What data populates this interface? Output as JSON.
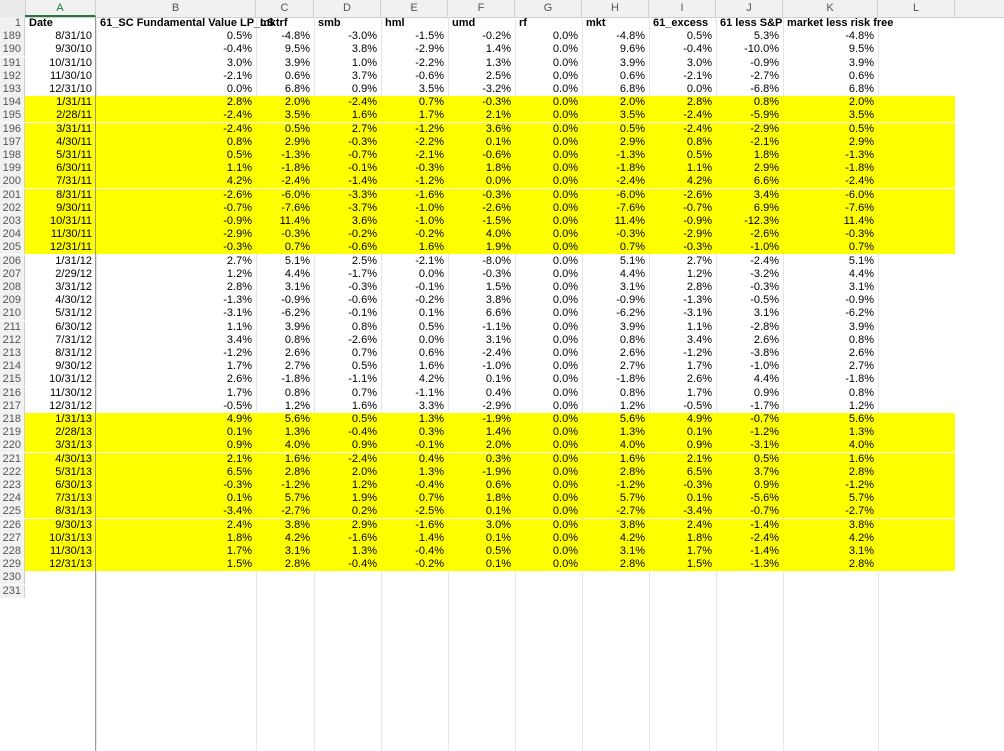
{
  "columns": [
    "A",
    "B",
    "C",
    "D",
    "E",
    "F",
    "G",
    "H",
    "I",
    "J",
    "K",
    "L"
  ],
  "header_row_num": "1",
  "headers": [
    "Date",
    "61_SC Fundamental Value LP_LS",
    "mktrf",
    "smb",
    "hml",
    "umd",
    "rf",
    "mkt",
    "61_excess",
    "61 less S&P",
    "market less risk free",
    ""
  ],
  "rows": [
    {
      "n": "189",
      "hl": false,
      "v": [
        "8/31/10",
        "0.5%",
        "-4.8%",
        "-3.0%",
        "-1.5%",
        "-0.2%",
        "0.0%",
        "-4.8%",
        "0.5%",
        "5.3%",
        "-4.8%"
      ]
    },
    {
      "n": "190",
      "hl": false,
      "v": [
        "9/30/10",
        "-0.4%",
        "9.5%",
        "3.8%",
        "-2.9%",
        "1.4%",
        "0.0%",
        "9.6%",
        "-0.4%",
        "-10.0%",
        "9.5%"
      ]
    },
    {
      "n": "191",
      "hl": false,
      "v": [
        "10/31/10",
        "3.0%",
        "3.9%",
        "1.0%",
        "-2.2%",
        "1.3%",
        "0.0%",
        "3.9%",
        "3.0%",
        "-0.9%",
        "3.9%"
      ]
    },
    {
      "n": "192",
      "hl": false,
      "v": [
        "11/30/10",
        "-2.1%",
        "0.6%",
        "3.7%",
        "-0.6%",
        "2.5%",
        "0.0%",
        "0.6%",
        "-2.1%",
        "-2.7%",
        "0.6%"
      ]
    },
    {
      "n": "193",
      "hl": false,
      "v": [
        "12/31/10",
        "0.0%",
        "6.8%",
        "0.9%",
        "3.5%",
        "-3.2%",
        "0.0%",
        "6.8%",
        "0.0%",
        "-6.8%",
        "6.8%"
      ]
    },
    {
      "n": "194",
      "hl": true,
      "v": [
        "1/31/11",
        "2.8%",
        "2.0%",
        "-2.4%",
        "0.7%",
        "-0.3%",
        "0.0%",
        "2.0%",
        "2.8%",
        "0.8%",
        "2.0%"
      ]
    },
    {
      "n": "195",
      "hl": true,
      "v": [
        "2/28/11",
        "-2.4%",
        "3.5%",
        "1.6%",
        "1.7%",
        "2.1%",
        "0.0%",
        "3.5%",
        "-2.4%",
        "-5.9%",
        "3.5%"
      ]
    },
    {
      "n": "196",
      "hl": true,
      "v": [
        "3/31/11",
        "-2.4%",
        "0.5%",
        "2.7%",
        "-1.2%",
        "3.6%",
        "0.0%",
        "0.5%",
        "-2.4%",
        "-2.9%",
        "0.5%"
      ]
    },
    {
      "n": "197",
      "hl": true,
      "v": [
        "4/30/11",
        "0.8%",
        "2.9%",
        "-0.3%",
        "-2.2%",
        "0.1%",
        "0.0%",
        "2.9%",
        "0.8%",
        "-2.1%",
        "2.9%"
      ]
    },
    {
      "n": "198",
      "hl": true,
      "v": [
        "5/31/11",
        "0.5%",
        "-1.3%",
        "-0.7%",
        "-2.1%",
        "-0.6%",
        "0.0%",
        "-1.3%",
        "0.5%",
        "1.8%",
        "-1.3%"
      ]
    },
    {
      "n": "199",
      "hl": true,
      "v": [
        "6/30/11",
        "1.1%",
        "-1.8%",
        "-0.1%",
        "-0.3%",
        "1.8%",
        "0.0%",
        "-1.8%",
        "1.1%",
        "2.9%",
        "-1.8%"
      ]
    },
    {
      "n": "200",
      "hl": true,
      "v": [
        "7/31/11",
        "4.2%",
        "-2.4%",
        "-1.4%",
        "-1.2%",
        "0.0%",
        "0.0%",
        "-2.4%",
        "4.2%",
        "6.6%",
        "-2.4%"
      ]
    },
    {
      "n": "201",
      "hl": true,
      "v": [
        "8/31/11",
        "-2.6%",
        "-6.0%",
        "-3.3%",
        "-1.6%",
        "-0.3%",
        "0.0%",
        "-6.0%",
        "-2.6%",
        "3.4%",
        "-6.0%"
      ]
    },
    {
      "n": "202",
      "hl": true,
      "v": [
        "9/30/11",
        "-0.7%",
        "-7.6%",
        "-3.7%",
        "-1.0%",
        "-2.6%",
        "0.0%",
        "-7.6%",
        "-0.7%",
        "6.9%",
        "-7.6%"
      ]
    },
    {
      "n": "203",
      "hl": true,
      "v": [
        "10/31/11",
        "-0.9%",
        "11.4%",
        "3.6%",
        "-1.0%",
        "-1.5%",
        "0.0%",
        "11.4%",
        "-0.9%",
        "-12.3%",
        "11.4%"
      ]
    },
    {
      "n": "204",
      "hl": true,
      "v": [
        "11/30/11",
        "-2.9%",
        "-0.3%",
        "-0.2%",
        "-0.2%",
        "4.0%",
        "0.0%",
        "-0.3%",
        "-2.9%",
        "-2.6%",
        "-0.3%"
      ]
    },
    {
      "n": "205",
      "hl": true,
      "v": [
        "12/31/11",
        "-0.3%",
        "0.7%",
        "-0.6%",
        "1.6%",
        "1.9%",
        "0.0%",
        "0.7%",
        "-0.3%",
        "-1.0%",
        "0.7%"
      ]
    },
    {
      "n": "206",
      "hl": false,
      "v": [
        "1/31/12",
        "2.7%",
        "5.1%",
        "2.5%",
        "-2.1%",
        "-8.0%",
        "0.0%",
        "5.1%",
        "2.7%",
        "-2.4%",
        "5.1%"
      ]
    },
    {
      "n": "207",
      "hl": false,
      "v": [
        "2/29/12",
        "1.2%",
        "4.4%",
        "-1.7%",
        "0.0%",
        "-0.3%",
        "0.0%",
        "4.4%",
        "1.2%",
        "-3.2%",
        "4.4%"
      ]
    },
    {
      "n": "208",
      "hl": false,
      "v": [
        "3/31/12",
        "2.8%",
        "3.1%",
        "-0.3%",
        "-0.1%",
        "1.5%",
        "0.0%",
        "3.1%",
        "2.8%",
        "-0.3%",
        "3.1%"
      ]
    },
    {
      "n": "209",
      "hl": false,
      "v": [
        "4/30/12",
        "-1.3%",
        "-0.9%",
        "-0.6%",
        "-0.2%",
        "3.8%",
        "0.0%",
        "-0.9%",
        "-1.3%",
        "-0.5%",
        "-0.9%"
      ]
    },
    {
      "n": "210",
      "hl": false,
      "v": [
        "5/31/12",
        "-3.1%",
        "-6.2%",
        "-0.1%",
        "0.1%",
        "6.6%",
        "0.0%",
        "-6.2%",
        "-3.1%",
        "3.1%",
        "-6.2%"
      ]
    },
    {
      "n": "211",
      "hl": false,
      "v": [
        "6/30/12",
        "1.1%",
        "3.9%",
        "0.8%",
        "0.5%",
        "-1.1%",
        "0.0%",
        "3.9%",
        "1.1%",
        "-2.8%",
        "3.9%"
      ]
    },
    {
      "n": "212",
      "hl": false,
      "v": [
        "7/31/12",
        "3.4%",
        "0.8%",
        "-2.6%",
        "0.0%",
        "3.1%",
        "0.0%",
        "0.8%",
        "3.4%",
        "2.6%",
        "0.8%"
      ]
    },
    {
      "n": "213",
      "hl": false,
      "v": [
        "8/31/12",
        "-1.2%",
        "2.6%",
        "0.7%",
        "0.6%",
        "-2.4%",
        "0.0%",
        "2.6%",
        "-1.2%",
        "-3.8%",
        "2.6%"
      ]
    },
    {
      "n": "214",
      "hl": false,
      "v": [
        "9/30/12",
        "1.7%",
        "2.7%",
        "0.5%",
        "1.6%",
        "-1.0%",
        "0.0%",
        "2.7%",
        "1.7%",
        "-1.0%",
        "2.7%"
      ]
    },
    {
      "n": "215",
      "hl": false,
      "v": [
        "10/31/12",
        "2.6%",
        "-1.8%",
        "-1.1%",
        "4.2%",
        "0.1%",
        "0.0%",
        "-1.8%",
        "2.6%",
        "4.4%",
        "-1.8%"
      ]
    },
    {
      "n": "216",
      "hl": false,
      "v": [
        "11/30/12",
        "1.7%",
        "0.8%",
        "0.7%",
        "-1.1%",
        "0.4%",
        "0.0%",
        "0.8%",
        "1.7%",
        "0.9%",
        "0.8%"
      ]
    },
    {
      "n": "217",
      "hl": false,
      "v": [
        "12/31/12",
        "-0.5%",
        "1.2%",
        "1.6%",
        "3.3%",
        "-2.9%",
        "0.0%",
        "1.2%",
        "-0.5%",
        "-1.7%",
        "1.2%"
      ]
    },
    {
      "n": "218",
      "hl": true,
      "v": [
        "1/31/13",
        "4.9%",
        "5.6%",
        "0.5%",
        "1.3%",
        "-1.9%",
        "0.0%",
        "5.6%",
        "4.9%",
        "-0.7%",
        "5.6%"
      ]
    },
    {
      "n": "219",
      "hl": true,
      "v": [
        "2/28/13",
        "0.1%",
        "1.3%",
        "-0.4%",
        "0.3%",
        "1.4%",
        "0.0%",
        "1.3%",
        "0.1%",
        "-1.2%",
        "1.3%"
      ]
    },
    {
      "n": "220",
      "hl": true,
      "v": [
        "3/31/13",
        "0.9%",
        "4.0%",
        "0.9%",
        "-0.1%",
        "2.0%",
        "0.0%",
        "4.0%",
        "0.9%",
        "-3.1%",
        "4.0%"
      ]
    },
    {
      "n": "221",
      "hl": true,
      "v": [
        "4/30/13",
        "2.1%",
        "1.6%",
        "-2.4%",
        "0.4%",
        "0.3%",
        "0.0%",
        "1.6%",
        "2.1%",
        "0.5%",
        "1.6%"
      ]
    },
    {
      "n": "222",
      "hl": true,
      "v": [
        "5/31/13",
        "6.5%",
        "2.8%",
        "2.0%",
        "1.3%",
        "-1.9%",
        "0.0%",
        "2.8%",
        "6.5%",
        "3.7%",
        "2.8%"
      ]
    },
    {
      "n": "223",
      "hl": true,
      "v": [
        "6/30/13",
        "-0.3%",
        "-1.2%",
        "1.2%",
        "-0.4%",
        "0.6%",
        "0.0%",
        "-1.2%",
        "-0.3%",
        "0.9%",
        "-1.2%"
      ]
    },
    {
      "n": "224",
      "hl": true,
      "v": [
        "7/31/13",
        "0.1%",
        "5.7%",
        "1.9%",
        "0.7%",
        "1.8%",
        "0.0%",
        "5.7%",
        "0.1%",
        "-5.6%",
        "5.7%"
      ]
    },
    {
      "n": "225",
      "hl": true,
      "v": [
        "8/31/13",
        "-3.4%",
        "-2.7%",
        "0.2%",
        "-2.5%",
        "0.1%",
        "0.0%",
        "-2.7%",
        "-3.4%",
        "-0.7%",
        "-2.7%"
      ]
    },
    {
      "n": "226",
      "hl": true,
      "v": [
        "9/30/13",
        "2.4%",
        "3.8%",
        "2.9%",
        "-1.6%",
        "3.0%",
        "0.0%",
        "3.8%",
        "2.4%",
        "-1.4%",
        "3.8%"
      ]
    },
    {
      "n": "227",
      "hl": true,
      "v": [
        "10/31/13",
        "1.8%",
        "4.2%",
        "-1.6%",
        "1.4%",
        "0.1%",
        "0.0%",
        "4.2%",
        "1.8%",
        "-2.4%",
        "4.2%"
      ]
    },
    {
      "n": "228",
      "hl": true,
      "v": [
        "11/30/13",
        "1.7%",
        "3.1%",
        "1.3%",
        "-0.4%",
        "0.5%",
        "0.0%",
        "3.1%",
        "1.7%",
        "-1.4%",
        "3.1%"
      ]
    },
    {
      "n": "229",
      "hl": true,
      "v": [
        "12/31/13",
        "1.5%",
        "2.8%",
        "-0.4%",
        "-0.2%",
        "0.1%",
        "0.0%",
        "2.8%",
        "1.5%",
        "-1.3%",
        "2.8%"
      ]
    }
  ],
  "trailing_rows": [
    "230",
    "231"
  ],
  "highlight_color": "#ffff00",
  "selected_column_color": "#1f7a3f"
}
